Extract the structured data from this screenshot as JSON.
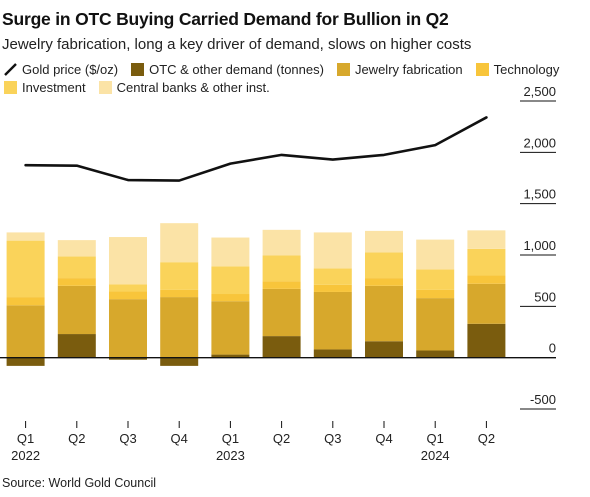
{
  "title": "Surge in OTC Buying Carried Demand for Bullion in Q2",
  "subtitle": "Jewelry fabrication, long a key driver of demand, slows on higher costs",
  "source": "Source: World Gold Council",
  "colors": {
    "gold_price": "#111111",
    "otc": "#7a5c0e",
    "jewelry": "#d7a82c",
    "technology": "#f8c53b",
    "investment": "#fad35a",
    "central_banks": "#fbe3a6",
    "axis": "#111111"
  },
  "legend": [
    {
      "label": "Gold price ($/oz)",
      "key": "gold_price",
      "kind": "line"
    },
    {
      "label": "OTC & other demand (tonnes)",
      "key": "otc",
      "kind": "box"
    },
    {
      "label": "Jewelry fabrication",
      "key": "jewelry",
      "kind": "box"
    },
    {
      "label": "Technology",
      "key": "technology",
      "kind": "box"
    },
    {
      "label": "Investment",
      "key": "investment",
      "kind": "box"
    },
    {
      "label": "Central banks & other inst.",
      "key": "central_banks",
      "kind": "box"
    }
  ],
  "chart_data": {
    "type": "bar",
    "stacked": true,
    "categories": [
      "Q1",
      "Q2",
      "Q3",
      "Q4",
      "Q1",
      "Q2",
      "Q3",
      "Q4",
      "Q1",
      "Q2"
    ],
    "year_labels": [
      {
        "index": 0,
        "label": "2022"
      },
      {
        "index": 4,
        "label": "2023"
      },
      {
        "index": 8,
        "label": "2024"
      }
    ],
    "yaxis": {
      "ticks": [
        -500,
        0,
        500,
        1000,
        1500,
        2000,
        2500
      ],
      "tick_labels": [
        "-500",
        "0",
        "500",
        "1,000",
        "1,500",
        "2,000",
        "2,500"
      ],
      "ylim": [
        -500,
        2500
      ],
      "position": "right"
    },
    "grid": false,
    "legend_position": "top",
    "series": [
      {
        "name": "OTC & other demand (tonnes)",
        "key": "otc",
        "values": [
          -80,
          230,
          -20,
          -80,
          30,
          210,
          80,
          160,
          70,
          330
        ]
      },
      {
        "name": "Jewelry fabrication",
        "key": "jewelry",
        "values": [
          510,
          470,
          570,
          590,
          520,
          460,
          560,
          540,
          510,
          390
        ]
      },
      {
        "name": "Technology",
        "key": "technology",
        "values": [
          80,
          75,
          75,
          70,
          70,
          75,
          70,
          75,
          80,
          80
        ]
      },
      {
        "name": "Investment",
        "key": "investment",
        "values": [
          550,
          210,
          70,
          270,
          270,
          250,
          160,
          250,
          200,
          260
        ]
      },
      {
        "name": "Central banks & other inst.",
        "key": "central_banks",
        "values": [
          80,
          160,
          460,
          380,
          280,
          250,
          350,
          210,
          290,
          180
        ]
      }
    ],
    "line": {
      "name": "Gold price ($/oz)",
      "key": "gold_price",
      "values": [
        1875,
        1870,
        1730,
        1725,
        1890,
        1975,
        1930,
        1975,
        2070,
        2340
      ]
    }
  }
}
